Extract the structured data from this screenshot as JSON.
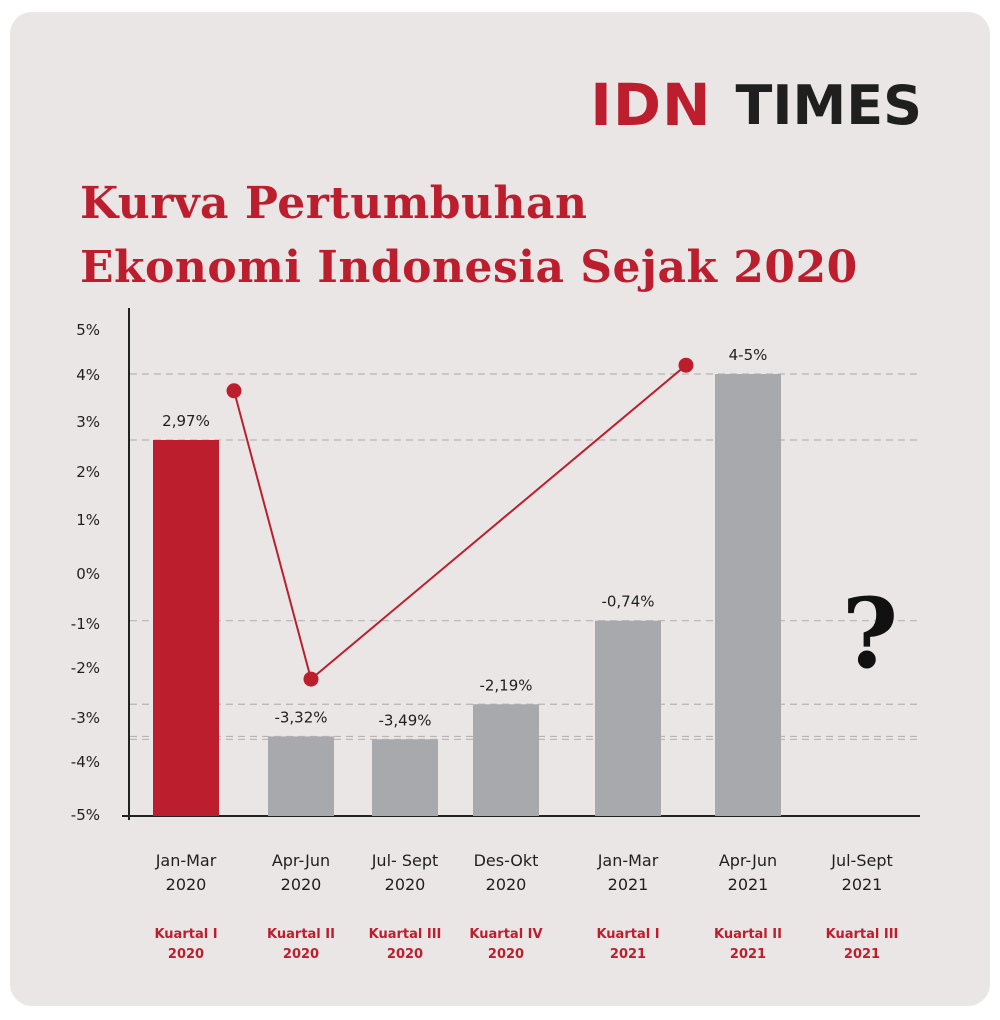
{
  "brand": {
    "logo_part1": "IDN",
    "logo_part2": "TIMES"
  },
  "colors": {
    "background": "#ebe6e6",
    "accent_red": "#bd1e2d",
    "bar_gray": "#a8a9ac",
    "text_dark": "#1f1f1f"
  },
  "chart_data": {
    "type": "bar",
    "title_line1": "Kurva Pertumbuhan",
    "title_line2": "Ekonomi Indonesia Sejak 2020",
    "y_ticks": [
      "5%",
      "4%",
      "3%",
      "2%",
      "1%",
      "0%",
      "-1%",
      "-2%",
      "-3%",
      "-4%",
      "-5%"
    ],
    "ylim": [
      -5,
      5
    ],
    "grid": "dashed reference lines at bar tops",
    "categories": [
      {
        "period_line1": "Jan-Mar",
        "period_line2": "2020",
        "quarter_line1": "Kuartal I",
        "quarter_line2": "2020"
      },
      {
        "period_line1": "Apr-Jun",
        "period_line2": "2020",
        "quarter_line1": "Kuartal II",
        "quarter_line2": "2020"
      },
      {
        "period_line1": "Jul- Sept",
        "period_line2": "2020",
        "quarter_line1": "Kuartal III",
        "quarter_line2": "2020"
      },
      {
        "period_line1": "Des-Okt",
        "period_line2": "2020",
        "quarter_line1": "Kuartal IV",
        "quarter_line2": "2020"
      },
      {
        "period_line1": "Jan-Mar",
        "period_line2": "2021",
        "quarter_line1": "Kuartal I",
        "quarter_line2": "2021"
      },
      {
        "period_line1": "Apr-Jun",
        "period_line2": "2021",
        "quarter_line1": "Kuartal II",
        "quarter_line2": "2021"
      },
      {
        "period_line1": "Jul-Sept",
        "period_line2": "2021",
        "quarter_line1": "Kuartal III",
        "quarter_line2": "2021"
      }
    ],
    "values": [
      2.97,
      -3.32,
      -3.49,
      -2.19,
      -0.74,
      4.0,
      null
    ],
    "data_labels": [
      "2,97%",
      "-3,32%",
      "-3,49%",
      "-2,19%",
      "-0,74%",
      "4-5%",
      "?"
    ],
    "bar_colors": [
      "#bd1e2d",
      "#a8a9ac",
      "#a8a9ac",
      "#a8a9ac",
      "#a8a9ac",
      "#a8a9ac",
      null
    ],
    "trend_line": {
      "color": "#bd1e2d",
      "points": [
        {
          "category_index": 0,
          "value": 3.7
        },
        {
          "category_index": 1,
          "value": -1.7
        },
        {
          "category_index": 5,
          "value": 4.2
        }
      ]
    }
  }
}
